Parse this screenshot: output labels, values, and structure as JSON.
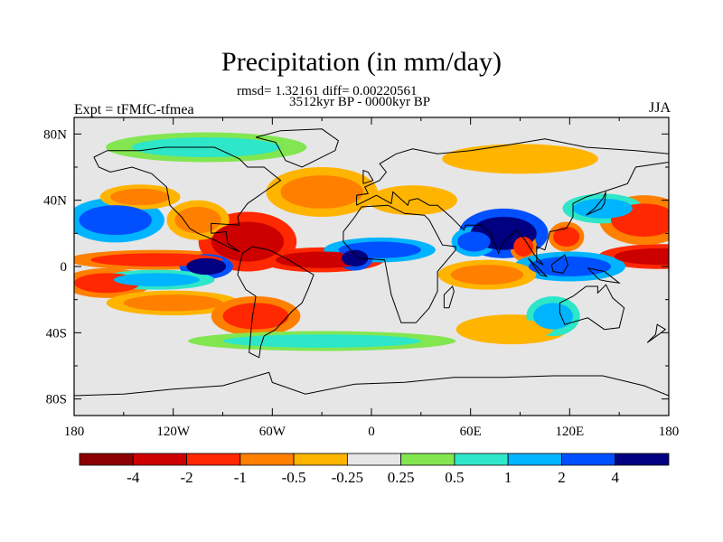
{
  "chart_data": {
    "type": "heatmap",
    "title": "Precipitation (in mm/day)",
    "stats_line": "rmsd= 1.32161 diff= 0.00220561",
    "period_line": "3512kyr BP - 0000kyr BP",
    "left_label": "Expt = tFMfC-tfmea",
    "right_label": "JJA",
    "x_ticks": [
      "180",
      "120W",
      "60W",
      "0",
      "60E",
      "120E",
      "180"
    ],
    "x_tick_lons": [
      -180,
      -120,
      -60,
      0,
      60,
      120,
      180
    ],
    "y_ticks": [
      "80N",
      "40N",
      "0",
      "40S",
      "80S"
    ],
    "y_tick_lats": [
      80,
      40,
      0,
      -40,
      -80
    ],
    "xlim": [
      -180,
      180
    ],
    "ylim": [
      -90,
      90
    ],
    "colorbar": {
      "labels": [
        "-4",
        "-2",
        "-1",
        "-0.5",
        "-0.25",
        "0.25",
        "0.5",
        "1",
        "2",
        "4"
      ],
      "colors": [
        "#8b0000",
        "#cd0000",
        "#ff2800",
        "#ff7f00",
        "#ffb400",
        "#e6e6e6",
        "#82e650",
        "#2ee6c8",
        "#00b4ff",
        "#0050ff",
        "#000080"
      ]
    },
    "neutral_color": "#e6e6e6",
    "anomaly_regions": [
      {
        "name": "pacific-itcz-west",
        "lon": 175,
        "lat": 6,
        "rx": 28,
        "ry": 5,
        "level": -4
      },
      {
        "name": "pacific-itcz-east",
        "lon": -130,
        "lat": 4,
        "rx": 40,
        "ry": 4,
        "level": -2
      },
      {
        "name": "north-pacific-wet",
        "lon": -155,
        "lat": 28,
        "rx": 22,
        "ry": 9,
        "level": 2
      },
      {
        "name": "north-pacific-dry",
        "lon": -140,
        "lat": 42,
        "rx": 18,
        "ry": 5,
        "level": -1
      },
      {
        "name": "caribbean-dry",
        "lon": -75,
        "lat": 15,
        "rx": 22,
        "ry": 12,
        "level": -4
      },
      {
        "name": "mexico-dry",
        "lon": -105,
        "lat": 28,
        "rx": 14,
        "ry": 8,
        "level": -1
      },
      {
        "name": "atlantic-itcz-dry",
        "lon": -30,
        "lat": 4,
        "rx": 28,
        "ry": 5,
        "level": -4
      },
      {
        "name": "east-pacific-wet",
        "lon": -100,
        "lat": 0,
        "rx": 12,
        "ry": 5,
        "level": 4
      },
      {
        "name": "south-pacific-dry-1",
        "lon": -160,
        "lat": -10,
        "rx": 20,
        "ry": 6,
        "level": -2
      },
      {
        "name": "south-pacific-dry-2",
        "lon": -120,
        "lat": -22,
        "rx": 30,
        "ry": 5,
        "level": -1
      },
      {
        "name": "south-pacific-wet",
        "lon": -130,
        "lat": -8,
        "rx": 26,
        "ry": 4,
        "level": 1
      },
      {
        "name": "south-america-dry",
        "lon": -70,
        "lat": -30,
        "rx": 20,
        "ry": 8,
        "level": -2
      },
      {
        "name": "north-atlantic-dry",
        "lon": -30,
        "lat": 45,
        "rx": 25,
        "ry": 10,
        "level": -1
      },
      {
        "name": "europe-dry",
        "lon": 25,
        "lat": 40,
        "rx": 20,
        "ry": 6,
        "level": -0.5
      },
      {
        "name": "sahel-wet",
        "lon": 5,
        "lat": 10,
        "rx": 25,
        "ry": 5,
        "level": 2
      },
      {
        "name": "west-africa-wet",
        "lon": -10,
        "lat": 5,
        "rx": 8,
        "ry": 5,
        "level": 4
      },
      {
        "name": "india-wet",
        "lon": 80,
        "lat": 20,
        "rx": 20,
        "ry": 10,
        "level": 4
      },
      {
        "name": "arabian-sea-wet",
        "lon": 62,
        "lat": 15,
        "rx": 10,
        "ry": 6,
        "level": 2
      },
      {
        "name": "bay-of-bengal-dry",
        "lon": 92,
        "lat": 12,
        "rx": 6,
        "ry": 6,
        "level": -2
      },
      {
        "name": "south-china-dry",
        "lon": 118,
        "lat": 18,
        "rx": 8,
        "ry": 6,
        "level": -2
      },
      {
        "name": "indonesia-wet",
        "lon": 120,
        "lat": 0,
        "rx": 25,
        "ry": 6,
        "level": 2
      },
      {
        "name": "indian-ocean-dry",
        "lon": 70,
        "lat": -5,
        "rx": 22,
        "ry": 6,
        "level": -1
      },
      {
        "name": "west-pacific-dry",
        "lon": 165,
        "lat": 28,
        "rx": 20,
        "ry": 10,
        "level": -2
      },
      {
        "name": "west-pacific-wet",
        "lon": 140,
        "lat": 35,
        "rx": 18,
        "ry": 6,
        "level": 1
      },
      {
        "name": "southern-ocean-wet",
        "lon": -30,
        "lat": -45,
        "rx": 60,
        "ry": 4,
        "level": 0.5
      },
      {
        "name": "south-indian-dry",
        "lon": 85,
        "lat": -38,
        "rx": 25,
        "ry": 6,
        "level": -0.5
      },
      {
        "name": "australia-west-wet",
        "lon": 110,
        "lat": -30,
        "rx": 12,
        "ry": 8,
        "level": 1
      },
      {
        "name": "arctic-wet",
        "lon": -100,
        "lat": 72,
        "rx": 45,
        "ry": 6,
        "level": 0.5
      },
      {
        "name": "siberia-dry",
        "lon": 90,
        "lat": 65,
        "rx": 35,
        "ry": 6,
        "level": -0.5
      }
    ],
    "continent_outlines": [
      {
        "name": "north-america",
        "points": [
          [
            -168,
            66
          ],
          [
            -160,
            70
          ],
          [
            -140,
            70
          ],
          [
            -125,
            72
          ],
          [
            -95,
            72
          ],
          [
            -80,
            65
          ],
          [
            -75,
            60
          ],
          [
            -65,
            60
          ],
          [
            -55,
            52
          ],
          [
            -65,
            45
          ],
          [
            -75,
            38
          ],
          [
            -81,
            30
          ],
          [
            -80,
            25
          ],
          [
            -97,
            26
          ],
          [
            -97,
            20
          ],
          [
            -88,
            21
          ],
          [
            -87,
            14
          ],
          [
            -80,
            9
          ],
          [
            -85,
            11
          ],
          [
            -95,
            16
          ],
          [
            -105,
            20
          ],
          [
            -110,
            23
          ],
          [
            -115,
            30
          ],
          [
            -122,
            37
          ],
          [
            -124,
            48
          ],
          [
            -133,
            56
          ],
          [
            -145,
            60
          ],
          [
            -158,
            57
          ],
          [
            -165,
            60
          ],
          [
            -168,
            66
          ]
        ]
      },
      {
        "name": "south-america",
        "points": [
          [
            -78,
            8
          ],
          [
            -72,
            12
          ],
          [
            -62,
            10
          ],
          [
            -52,
            5
          ],
          [
            -35,
            -5
          ],
          [
            -38,
            -13
          ],
          [
            -42,
            -22
          ],
          [
            -48,
            -27
          ],
          [
            -58,
            -38
          ],
          [
            -65,
            -42
          ],
          [
            -67,
            -48
          ],
          [
            -68,
            -55
          ],
          [
            -74,
            -52
          ],
          [
            -73,
            -40
          ],
          [
            -72,
            -30
          ],
          [
            -70,
            -18
          ],
          [
            -76,
            -14
          ],
          [
            -81,
            -5
          ],
          [
            -80,
            0
          ],
          [
            -78,
            8
          ]
        ]
      },
      {
        "name": "africa-eurasia",
        "points": [
          [
            -17,
            15
          ],
          [
            -17,
            21
          ],
          [
            -10,
            30
          ],
          [
            -6,
            36
          ],
          [
            10,
            37
          ],
          [
            20,
            32
          ],
          [
            32,
            31
          ],
          [
            35,
            28
          ],
          [
            43,
            13
          ],
          [
            51,
            12
          ],
          [
            51,
            10
          ],
          [
            40,
            -3
          ],
          [
            40,
            -15
          ],
          [
            35,
            -25
          ],
          [
            27,
            -34
          ],
          [
            18,
            -34
          ],
          [
            12,
            -17
          ],
          [
            9,
            -1
          ],
          [
            8,
            4
          ],
          [
            -8,
            5
          ],
          [
            -17,
            15
          ]
        ]
      },
      {
        "name": "europe-asia",
        "points": [
          [
            -9,
            37
          ],
          [
            -9,
            43
          ],
          [
            -2,
            44
          ],
          [
            -4,
            48
          ],
          [
            5,
            52
          ],
          [
            9,
            57
          ],
          [
            5,
            62
          ],
          [
            15,
            68
          ],
          [
            25,
            71
          ],
          [
            40,
            68
          ],
          [
            60,
            70
          ],
          [
            80,
            73
          ],
          [
            105,
            77
          ],
          [
            130,
            72
          ],
          [
            160,
            70
          ],
          [
            180,
            68
          ],
          [
            180,
            63
          ],
          [
            160,
            60
          ],
          [
            155,
            50
          ],
          [
            140,
            45
          ],
          [
            130,
            42
          ],
          [
            122,
            38
          ],
          [
            122,
            30
          ],
          [
            118,
            23
          ],
          [
            108,
            21
          ],
          [
            105,
            10
          ],
          [
            100,
            12
          ],
          [
            100,
            3
          ],
          [
            104,
            1
          ],
          [
            98,
            8
          ],
          [
            93,
            16
          ],
          [
            88,
            22
          ],
          [
            80,
            15
          ],
          [
            77,
            8
          ],
          [
            72,
            20
          ],
          [
            67,
            25
          ],
          [
            57,
            25
          ],
          [
            56,
            22
          ],
          [
            50,
            28
          ],
          [
            48,
            30
          ],
          [
            40,
            37
          ],
          [
            35,
            37
          ],
          [
            28,
            41
          ],
          [
            23,
            40
          ],
          [
            22,
            37
          ],
          [
            13,
            45
          ],
          [
            12,
            38
          ],
          [
            3,
            43
          ],
          [
            -9,
            37
          ]
        ]
      },
      {
        "name": "australia",
        "points": [
          [
            114,
            -22
          ],
          [
            122,
            -18
          ],
          [
            130,
            -12
          ],
          [
            137,
            -12
          ],
          [
            137,
            -16
          ],
          [
            142,
            -11
          ],
          [
            146,
            -19
          ],
          [
            153,
            -25
          ],
          [
            150,
            -37
          ],
          [
            141,
            -38
          ],
          [
            131,
            -31
          ],
          [
            117,
            -35
          ],
          [
            114,
            -28
          ],
          [
            114,
            -22
          ]
        ]
      },
      {
        "name": "greenland",
        "points": [
          [
            -70,
            78
          ],
          [
            -55,
            82
          ],
          [
            -30,
            83
          ],
          [
            -20,
            76
          ],
          [
            -22,
            70
          ],
          [
            -42,
            60
          ],
          [
            -52,
            64
          ],
          [
            -58,
            75
          ],
          [
            -70,
            78
          ]
        ]
      },
      {
        "name": "antarctica",
        "points": [
          [
            -180,
            -78
          ],
          [
            -150,
            -77
          ],
          [
            -120,
            -74
          ],
          [
            -90,
            -72
          ],
          [
            -62,
            -64
          ],
          [
            -60,
            -70
          ],
          [
            -40,
            -77
          ],
          [
            -10,
            -71
          ],
          [
            20,
            -70
          ],
          [
            50,
            -67
          ],
          [
            80,
            -67
          ],
          [
            110,
            -66
          ],
          [
            140,
            -66
          ],
          [
            165,
            -72
          ],
          [
            180,
            -78
          ]
        ]
      },
      {
        "name": "madagascar",
        "points": [
          [
            44,
            -25
          ],
          [
            47,
            -25
          ],
          [
            50,
            -15
          ],
          [
            49,
            -12
          ],
          [
            44,
            -17
          ],
          [
            44,
            -25
          ]
        ]
      },
      {
        "name": "borneo",
        "points": [
          [
            109,
            1
          ],
          [
            117,
            7
          ],
          [
            119,
            1
          ],
          [
            116,
            -4
          ],
          [
            110,
            -3
          ],
          [
            109,
            1
          ]
        ]
      },
      {
        "name": "sumatra",
        "points": [
          [
            95,
            5
          ],
          [
            100,
            0
          ],
          [
            106,
            -6
          ],
          [
            102,
            -5
          ],
          [
            95,
            5
          ]
        ]
      },
      {
        "name": "new-guinea",
        "points": [
          [
            131,
            -1
          ],
          [
            141,
            -3
          ],
          [
            150,
            -10
          ],
          [
            143,
            -9
          ],
          [
            138,
            -8
          ],
          [
            131,
            -1
          ]
        ]
      },
      {
        "name": "japan",
        "points": [
          [
            130,
            31
          ],
          [
            135,
            35
          ],
          [
            140,
            41
          ],
          [
            142,
            45
          ],
          [
            141,
            38
          ],
          [
            139,
            35
          ],
          [
            130,
            31
          ]
        ]
      },
      {
        "name": "uk",
        "points": [
          [
            -5,
            50
          ],
          [
            1,
            52
          ],
          [
            -2,
            57
          ],
          [
            -5,
            58
          ],
          [
            -5,
            55
          ],
          [
            -5,
            50
          ]
        ]
      },
      {
        "name": "new-zealand",
        "points": [
          [
            167,
            -46
          ],
          [
            174,
            -41
          ],
          [
            178,
            -38
          ],
          [
            173,
            -35
          ],
          [
            172,
            -41
          ],
          [
            167,
            -46
          ]
        ]
      }
    ]
  }
}
